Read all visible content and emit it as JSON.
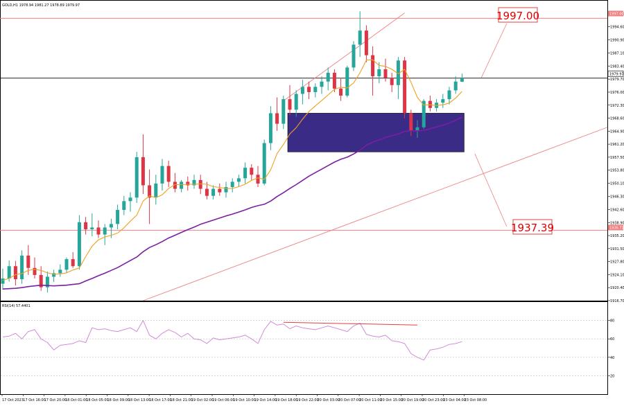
{
  "header": {
    "main": "GOLD,H1  1978.94 1981.27 1978.89 1979.97",
    "rsi": "RSI(14) 57.4401"
  },
  "annotations": {
    "upper_level": "1997.00",
    "lower_level": "1937.39"
  },
  "price_tags": {
    "resistance": "1997.00",
    "current": "1979.97",
    "support": "1936.71"
  },
  "colors": {
    "bull": "#26a69a",
    "bear": "#dc3545",
    "ema_fast": "#f0a020",
    "ema_slow": "#7a1fa2",
    "zone": "#3a2b86",
    "level": "#f08080",
    "rsi": "#d18ad6",
    "rsi_div": "#e04040"
  },
  "chart_data": {
    "type": "candlestick",
    "title": "GOLD,H1",
    "symbol": "GOLD",
    "timeframe": "H1",
    "ohlc_header": {
      "open": 1978.94,
      "high": 1981.27,
      "low": 1978.89,
      "close": 1979.97
    },
    "ylim": [
      1916.7,
      2002.0
    ],
    "y_ticks": [
      1998.3,
      1994.6,
      1990.9,
      1987.1,
      1983.4,
      1979.7,
      1976.0,
      1972.3,
      1968.6,
      1964.9,
      1961.2,
      1957.5,
      1953.8,
      1950.1,
      1946.3,
      1942.6,
      1938.9,
      1935.2,
      1931.5,
      1927.8,
      1924.1,
      1920.4,
      1916.7
    ],
    "x_labels": [
      "17 Oct 2023",
      "17 Oct 16:00",
      "17 Oct 20:00",
      "18 Oct 01:00",
      "18 Oct 05:00",
      "18 Oct 09:00",
      "18 Oct 13:00",
      "18 Oct 17:00",
      "18 Oct 21:00",
      "19 Oct 02:00",
      "19 Oct 06:00",
      "19 Oct 10:00",
      "19 Oct 14:00",
      "19 Oct 18:00",
      "19 Oct 22:00",
      "20 Oct 03:00",
      "20 Oct 07:00",
      "20 Oct 11:00",
      "20 Oct 15:00",
      "20 Oct 19:00",
      "20 Oct 23:00",
      "23 Oct 04:00",
      "23 Oct 08:00"
    ],
    "candles": [
      {
        "o": 1921.5,
        "h": 1925.8,
        "l": 1919.8,
        "c": 1923.0
      },
      {
        "o": 1923.0,
        "h": 1928.1,
        "l": 1922.1,
        "c": 1926.5
      },
      {
        "o": 1926.5,
        "h": 1928.0,
        "l": 1921.0,
        "c": 1922.8
      },
      {
        "o": 1922.8,
        "h": 1931.0,
        "l": 1921.5,
        "c": 1929.5
      },
      {
        "o": 1929.5,
        "h": 1932.5,
        "l": 1924.0,
        "c": 1926.0
      },
      {
        "o": 1926.0,
        "h": 1929.0,
        "l": 1923.0,
        "c": 1924.0
      },
      {
        "o": 1924.0,
        "h": 1926.5,
        "l": 1919.5,
        "c": 1920.5
      },
      {
        "o": 1920.5,
        "h": 1925.0,
        "l": 1919.0,
        "c": 1923.5
      },
      {
        "o": 1923.5,
        "h": 1925.5,
        "l": 1922.0,
        "c": 1924.5
      },
      {
        "o": 1924.5,
        "h": 1927.0,
        "l": 1923.5,
        "c": 1925.5
      },
      {
        "o": 1925.5,
        "h": 1929.0,
        "l": 1924.5,
        "c": 1928.5
      },
      {
        "o": 1928.5,
        "h": 1930.5,
        "l": 1926.0,
        "c": 1926.5
      },
      {
        "o": 1926.5,
        "h": 1941.0,
        "l": 1925.5,
        "c": 1939.0
      },
      {
        "o": 1939.0,
        "h": 1940.5,
        "l": 1935.5,
        "c": 1937.0
      },
      {
        "o": 1937.0,
        "h": 1941.5,
        "l": 1935.0,
        "c": 1937.5
      },
      {
        "o": 1937.5,
        "h": 1939.5,
        "l": 1934.5,
        "c": 1935.5
      },
      {
        "o": 1935.5,
        "h": 1938.5,
        "l": 1932.5,
        "c": 1937.5
      },
      {
        "o": 1937.5,
        "h": 1940.0,
        "l": 1934.5,
        "c": 1938.5
      },
      {
        "o": 1938.5,
        "h": 1944.0,
        "l": 1937.0,
        "c": 1942.5
      },
      {
        "o": 1942.5,
        "h": 1946.5,
        "l": 1941.0,
        "c": 1945.0
      },
      {
        "o": 1945.0,
        "h": 1947.5,
        "l": 1942.0,
        "c": 1946.0
      },
      {
        "o": 1946.0,
        "h": 1959.0,
        "l": 1944.5,
        "c": 1957.5
      },
      {
        "o": 1957.5,
        "h": 1964.0,
        "l": 1947.0,
        "c": 1949.5
      },
      {
        "o": 1949.5,
        "h": 1954.0,
        "l": 1938.5,
        "c": 1946.0
      },
      {
        "o": 1946.0,
        "h": 1952.5,
        "l": 1944.0,
        "c": 1950.0
      },
      {
        "o": 1950.0,
        "h": 1957.0,
        "l": 1948.0,
        "c": 1955.0
      },
      {
        "o": 1955.0,
        "h": 1956.5,
        "l": 1949.0,
        "c": 1950.5
      },
      {
        "o": 1950.5,
        "h": 1953.0,
        "l": 1947.5,
        "c": 1948.5
      },
      {
        "o": 1948.5,
        "h": 1951.0,
        "l": 1947.5,
        "c": 1950.5
      },
      {
        "o": 1950.5,
        "h": 1952.0,
        "l": 1948.0,
        "c": 1949.5
      },
      {
        "o": 1949.5,
        "h": 1952.5,
        "l": 1948.5,
        "c": 1951.0
      },
      {
        "o": 1951.0,
        "h": 1952.5,
        "l": 1947.0,
        "c": 1948.5
      },
      {
        "o": 1948.5,
        "h": 1950.5,
        "l": 1945.5,
        "c": 1946.5
      },
      {
        "o": 1946.5,
        "h": 1949.5,
        "l": 1945.5,
        "c": 1948.5
      },
      {
        "o": 1948.5,
        "h": 1950.0,
        "l": 1946.5,
        "c": 1947.5
      },
      {
        "o": 1947.5,
        "h": 1950.5,
        "l": 1946.0,
        "c": 1949.0
      },
      {
        "o": 1949.0,
        "h": 1951.5,
        "l": 1947.5,
        "c": 1950.5
      },
      {
        "o": 1950.5,
        "h": 1952.5,
        "l": 1949.0,
        "c": 1951.5
      },
      {
        "o": 1951.5,
        "h": 1956.0,
        "l": 1950.0,
        "c": 1954.5
      },
      {
        "o": 1954.5,
        "h": 1955.5,
        "l": 1951.0,
        "c": 1952.5
      },
      {
        "o": 1952.5,
        "h": 1955.0,
        "l": 1949.0,
        "c": 1950.0
      },
      {
        "o": 1950.0,
        "h": 1962.5,
        "l": 1949.5,
        "c": 1961.5
      },
      {
        "o": 1961.5,
        "h": 1972.0,
        "l": 1959.5,
        "c": 1970.0
      },
      {
        "o": 1970.0,
        "h": 1974.5,
        "l": 1965.0,
        "c": 1967.0
      },
      {
        "o": 1967.0,
        "h": 1975.0,
        "l": 1965.5,
        "c": 1974.0
      },
      {
        "o": 1974.0,
        "h": 1978.0,
        "l": 1969.5,
        "c": 1971.0
      },
      {
        "o": 1971.0,
        "h": 1976.5,
        "l": 1969.0,
        "c": 1975.5
      },
      {
        "o": 1975.5,
        "h": 1979.5,
        "l": 1972.5,
        "c": 1977.5
      },
      {
        "o": 1977.5,
        "h": 1979.0,
        "l": 1974.0,
        "c": 1976.0
      },
      {
        "o": 1976.0,
        "h": 1978.5,
        "l": 1974.5,
        "c": 1977.5
      },
      {
        "o": 1977.5,
        "h": 1980.5,
        "l": 1975.5,
        "c": 1979.0
      },
      {
        "o": 1979.0,
        "h": 1983.0,
        "l": 1976.5,
        "c": 1981.5
      },
      {
        "o": 1981.5,
        "h": 1982.5,
        "l": 1976.0,
        "c": 1977.0
      },
      {
        "o": 1977.0,
        "h": 1980.0,
        "l": 1973.5,
        "c": 1975.0
      },
      {
        "o": 1975.0,
        "h": 1983.5,
        "l": 1974.5,
        "c": 1983.0
      },
      {
        "o": 1983.0,
        "h": 1990.5,
        "l": 1982.0,
        "c": 1989.5
      },
      {
        "o": 1989.5,
        "h": 1999.0,
        "l": 1986.0,
        "c": 1993.5
      },
      {
        "o": 1993.5,
        "h": 1995.0,
        "l": 1984.5,
        "c": 1986.5
      },
      {
        "o": 1986.5,
        "h": 1989.0,
        "l": 1975.0,
        "c": 1980.5
      },
      {
        "o": 1980.5,
        "h": 1984.5,
        "l": 1978.5,
        "c": 1982.5
      },
      {
        "o": 1982.5,
        "h": 1985.5,
        "l": 1979.0,
        "c": 1980.0
      },
      {
        "o": 1980.0,
        "h": 1981.5,
        "l": 1976.0,
        "c": 1978.0
      },
      {
        "o": 1978.0,
        "h": 1986.0,
        "l": 1974.0,
        "c": 1985.0
      },
      {
        "o": 1985.0,
        "h": 1986.0,
        "l": 1968.5,
        "c": 1970.0
      },
      {
        "o": 1970.0,
        "h": 1971.0,
        "l": 1963.5,
        "c": 1965.0
      },
      {
        "o": 1965.0,
        "h": 1968.0,
        "l": 1963.0,
        "c": 1966.0
      },
      {
        "o": 1966.0,
        "h": 1974.0,
        "l": 1965.5,
        "c": 1973.5
      },
      {
        "o": 1973.5,
        "h": 1975.0,
        "l": 1970.5,
        "c": 1971.5
      },
      {
        "o": 1971.5,
        "h": 1974.0,
        "l": 1970.5,
        "c": 1973.0
      },
      {
        "o": 1973.0,
        "h": 1975.5,
        "l": 1971.5,
        "c": 1974.0
      },
      {
        "o": 1974.0,
        "h": 1977.5,
        "l": 1972.5,
        "c": 1976.5
      },
      {
        "o": 1976.5,
        "h": 1980.5,
        "l": 1975.5,
        "c": 1979.0
      },
      {
        "o": 1978.94,
        "h": 1981.27,
        "l": 1978.89,
        "c": 1979.97
      }
    ],
    "ema_fast": [
      1922.5,
      1923.0,
      1924.1,
      1924.4,
      1925.3,
      1925.6,
      1925.3,
      1924.6,
      1924.2,
      1924.3,
      1924.6,
      1925.4,
      1926.0,
      1929.2,
      1932.2,
      1934.0,
      1934.8,
      1935.3,
      1935.9,
      1937.4,
      1939.3,
      1941.0,
      1945.0,
      1946.5,
      1946.0,
      1946.8,
      1948.6,
      1949.7,
      1949.7,
      1949.8,
      1949.8,
      1949.9,
      1949.8,
      1949.1,
      1948.9,
      1948.6,
      1948.6,
      1949.1,
      1949.8,
      1950.9,
      1951.6,
      1951.2,
      1953.9,
      1958.5,
      1961.1,
      1964.1,
      1965.9,
      1968.3,
      1970.5,
      1972.1,
      1973.6,
      1975.2,
      1976.8,
      1977.4,
      1977.2,
      1978.6,
      1981.5,
      1985.1,
      1985.2,
      1983.6,
      1983.3,
      1982.5,
      1981.2,
      1982.5,
      1978.8,
      1974.5,
      1972.3,
      1972.4,
      1972.2,
      1972.4,
      1972.9,
      1974.3,
      1976.2
    ],
    "ema_slow": [
      1920.0,
      1920.1,
      1920.2,
      1920.4,
      1920.7,
      1920.9,
      1921.1,
      1921.0,
      1920.9,
      1921.0,
      1921.1,
      1921.3,
      1921.5,
      1922.3,
      1923.0,
      1923.8,
      1924.5,
      1925.3,
      1926.1,
      1927.1,
      1928.1,
      1929.1,
      1930.6,
      1931.8,
      1932.6,
      1933.5,
      1934.5,
      1935.3,
      1936.1,
      1936.9,
      1937.6,
      1938.4,
      1939.0,
      1939.6,
      1940.2,
      1940.8,
      1941.3,
      1941.9,
      1942.5,
      1943.2,
      1943.7,
      1944.1,
      1945.0,
      1946.3,
      1947.4,
      1948.6,
      1949.7,
      1950.9,
      1952.1,
      1953.1,
      1954.1,
      1955.1,
      1956.1,
      1956.9,
      1957.5,
      1958.4,
      1959.5,
      1960.9,
      1961.8,
      1962.4,
      1963.1,
      1963.6,
      1964.1,
      1964.8,
      1965.0,
      1965.0,
      1965.1,
      1965.6,
      1966.1,
      1966.6,
      1967.2,
      1968.0,
      1968.9
    ],
    "resistance_level": 1997.0,
    "support_level": 1936.71,
    "current_price": 1979.97,
    "zone": {
      "start_candle": 45,
      "end_candle": 72,
      "top": 1970.0,
      "bottom": 1959.0
    },
    "upper_channel": {
      "from": {
        "i": 44,
        "price": 1973.5
      },
      "to": {
        "i": 63,
        "price": 1998.5
      }
    },
    "lower_channel": {
      "from": {
        "i": 22,
        "price": 1916.7
      },
      "to": {
        "i": 101,
        "price": 1966.0
      }
    },
    "rsi": {
      "name": "RSI(14)",
      "last": 57.4401,
      "ylim": [
        0,
        100
      ],
      "levels": [
        80,
        60,
        40,
        20
      ],
      "values": [
        62,
        63,
        66,
        60,
        68,
        70,
        60,
        56,
        48,
        53,
        54,
        55,
        58,
        56,
        72,
        70,
        71,
        69,
        68,
        70,
        72,
        68,
        80,
        64,
        60,
        66,
        70,
        67,
        62,
        66,
        60,
        59,
        55,
        61,
        59,
        60,
        61,
        62,
        64,
        60,
        55,
        70,
        79,
        75,
        76,
        71,
        74,
        72,
        71,
        70,
        72,
        74,
        72,
        70,
        68,
        74,
        77,
        65,
        63,
        62,
        64,
        58,
        57,
        55,
        44,
        40,
        37,
        48,
        49,
        51,
        54,
        55,
        57
      ]
    },
    "rsi_divergence": {
      "from": {
        "i": 44,
        "value": 78.0
      },
      "to": {
        "i": 65,
        "value": 75.0
      }
    },
    "arrows": [
      {
        "label": "1997.00",
        "from": {
          "i": 75,
          "price": 1980.0
        },
        "to": {
          "i": 79,
          "price": 1995.5
        }
      },
      {
        "label": "1937.39",
        "from": {
          "i": 74,
          "price": 1958.5
        },
        "to": {
          "i": 79,
          "price": 1937.8
        }
      }
    ]
  }
}
